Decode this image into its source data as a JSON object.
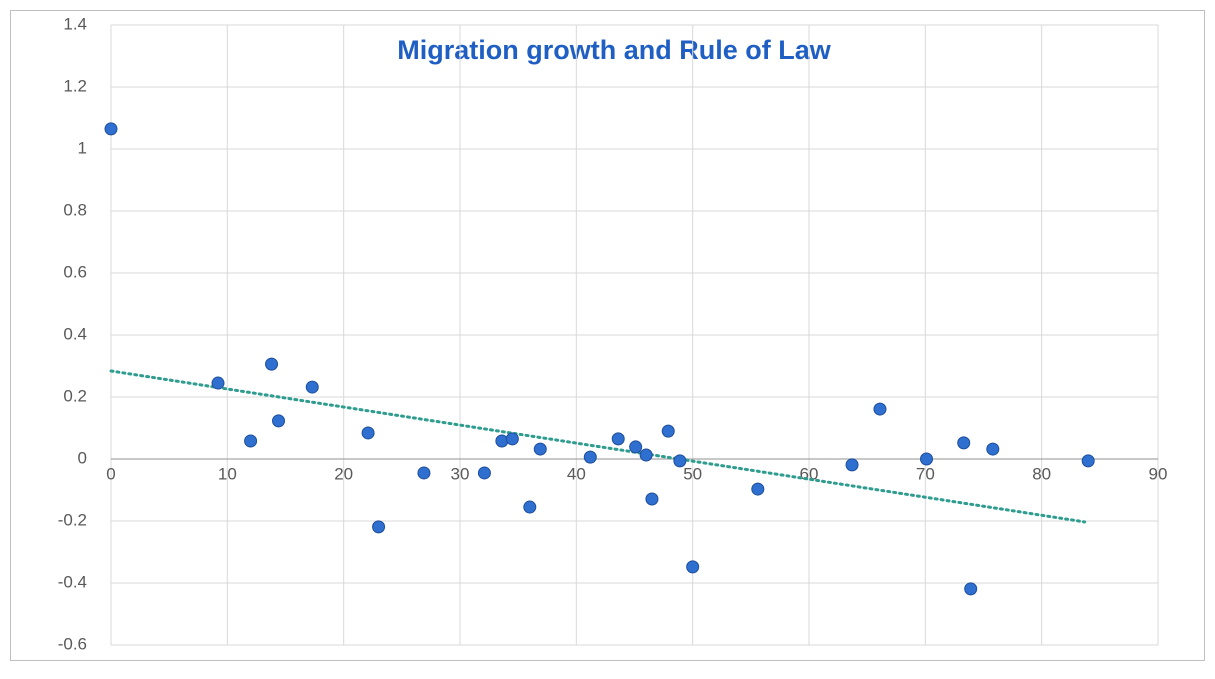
{
  "chart_data": {
    "type": "scatter",
    "title": "Migration growth and Rule of Law",
    "series": [
      {
        "color": "#2f6fd0",
        "x": [
          0,
          9.2,
          12.0,
          13.8,
          14.4,
          17.3,
          22.1,
          23.0,
          26.9,
          32.1,
          33.6,
          34.5,
          36.0,
          36.9,
          41.2,
          43.6,
          45.1,
          46.0,
          46.5,
          47.9,
          48.9,
          50.0,
          55.6,
          63.7,
          66.1,
          70.1,
          73.3,
          73.9,
          75.8,
          84.0
        ],
        "values": [
          1.065,
          0.245,
          0.058,
          0.306,
          0.123,
          0.232,
          0.084,
          -0.219,
          -0.045,
          -0.045,
          0.058,
          0.065,
          -0.155,
          0.032,
          0.006,
          0.065,
          0.039,
          0.013,
          -0.129,
          0.09,
          -0.006,
          -0.348,
          -0.097,
          -0.019,
          0.161,
          0,
          0.052,
          -0.419,
          0.032,
          -0.006
        ]
      }
    ],
    "trendline": {
      "color": "#2e9c8e",
      "x": [
        0,
        83.7
      ],
      "values": [
        0.284,
        -0.203
      ]
    },
    "xlim": [
      0,
      90
    ],
    "xticks": [
      0,
      10,
      20,
      30,
      40,
      50,
      60,
      70,
      80,
      90
    ],
    "ylim": [
      -0.6,
      1.4
    ],
    "yticks": [
      -0.6,
      -0.4,
      -0.2,
      0,
      0.2,
      0.4,
      0.6,
      0.8,
      1,
      1.2,
      1.4
    ],
    "grid": true
  }
}
